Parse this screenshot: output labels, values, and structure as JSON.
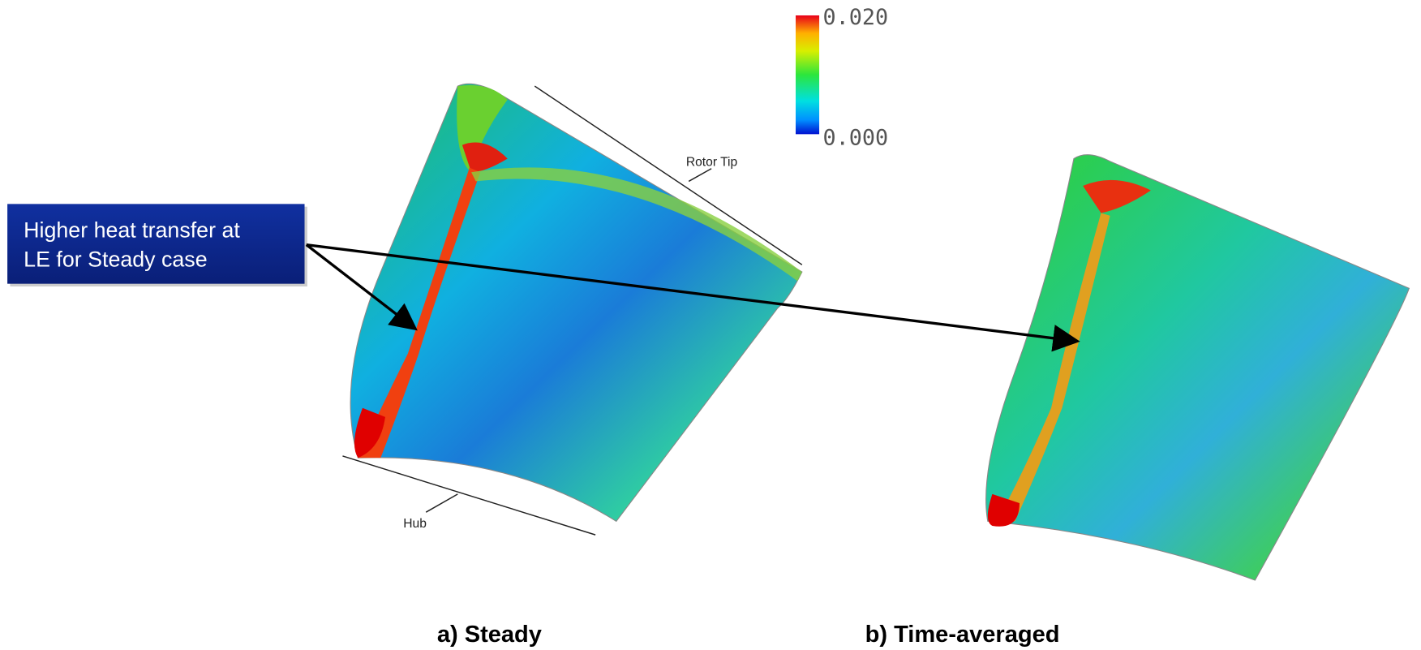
{
  "colorbar": {
    "max_label": "0.020",
    "min_label": "0.000"
  },
  "annotations": {
    "rotor_tip": "Rotor Tip",
    "hub": "Hub"
  },
  "callout": {
    "lines": [
      "Higher heat transfer at",
      "LE for Steady case"
    ]
  },
  "captions": {
    "steady": "a) Steady",
    "time_averaged": "b) Time-averaged"
  }
}
